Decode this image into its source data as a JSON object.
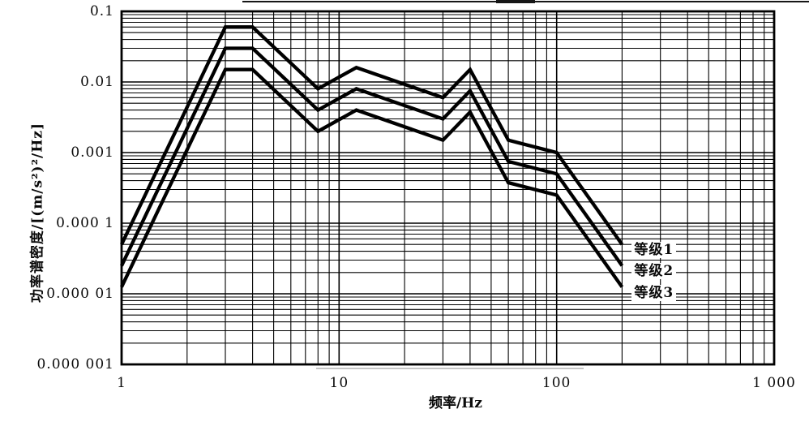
{
  "page": {
    "background": "#ffffff"
  },
  "chart_data": {
    "type": "line",
    "x_scale": "log",
    "y_scale": "log",
    "title": "",
    "xlabel": "频率/Hz",
    "ylabel": "功率谱密度/[(m/s²)²/Hz]",
    "xlim": [
      1,
      1000
    ],
    "ylim": [
      1e-06,
      0.1
    ],
    "grid": "log major and minor gridlines on both axes",
    "legend_position": "right of curve ends",
    "line_color": "#000000",
    "background": "#ffffff",
    "x_ticks": [
      {
        "value": 1,
        "label": "1"
      },
      {
        "value": 10,
        "label": "10"
      },
      {
        "value": 100,
        "label": "100"
      },
      {
        "value": 1000,
        "label": "1 000"
      }
    ],
    "y_ticks": [
      {
        "value": 0.1,
        "label": "0.1"
      },
      {
        "value": 0.01,
        "label": "0.01"
      },
      {
        "value": 0.001,
        "label": "0.001"
      },
      {
        "value": 0.0001,
        "label": "0.000 1"
      },
      {
        "value": 1e-05,
        "label": "0.000 01"
      },
      {
        "value": 1e-06,
        "label": "0.000 001"
      }
    ],
    "series": [
      {
        "name": "等级1",
        "points": [
          [
            1,
            5e-05
          ],
          [
            3,
            0.06
          ],
          [
            4,
            0.06
          ],
          [
            8,
            0.008
          ],
          [
            12,
            0.016
          ],
          [
            30,
            0.006
          ],
          [
            40,
            0.015
          ],
          [
            60,
            0.0015
          ],
          [
            100,
            0.001
          ],
          [
            200,
            5e-05
          ]
        ]
      },
      {
        "name": "等级2",
        "points": [
          [
            1,
            2.5e-05
          ],
          [
            3,
            0.03
          ],
          [
            4,
            0.03
          ],
          [
            8,
            0.004
          ],
          [
            12,
            0.008
          ],
          [
            30,
            0.003
          ],
          [
            40,
            0.0075
          ],
          [
            60,
            0.00075
          ],
          [
            100,
            0.0005
          ],
          [
            200,
            2.5e-05
          ]
        ]
      },
      {
        "name": "等级3",
        "points": [
          [
            1,
            1.25e-05
          ],
          [
            3,
            0.015
          ],
          [
            4,
            0.015
          ],
          [
            8,
            0.002
          ],
          [
            12,
            0.004
          ],
          [
            30,
            0.0015
          ],
          [
            40,
            0.00375
          ],
          [
            60,
            0.000375
          ],
          [
            100,
            0.00025
          ],
          [
            200,
            1.25e-05
          ]
        ]
      }
    ]
  }
}
